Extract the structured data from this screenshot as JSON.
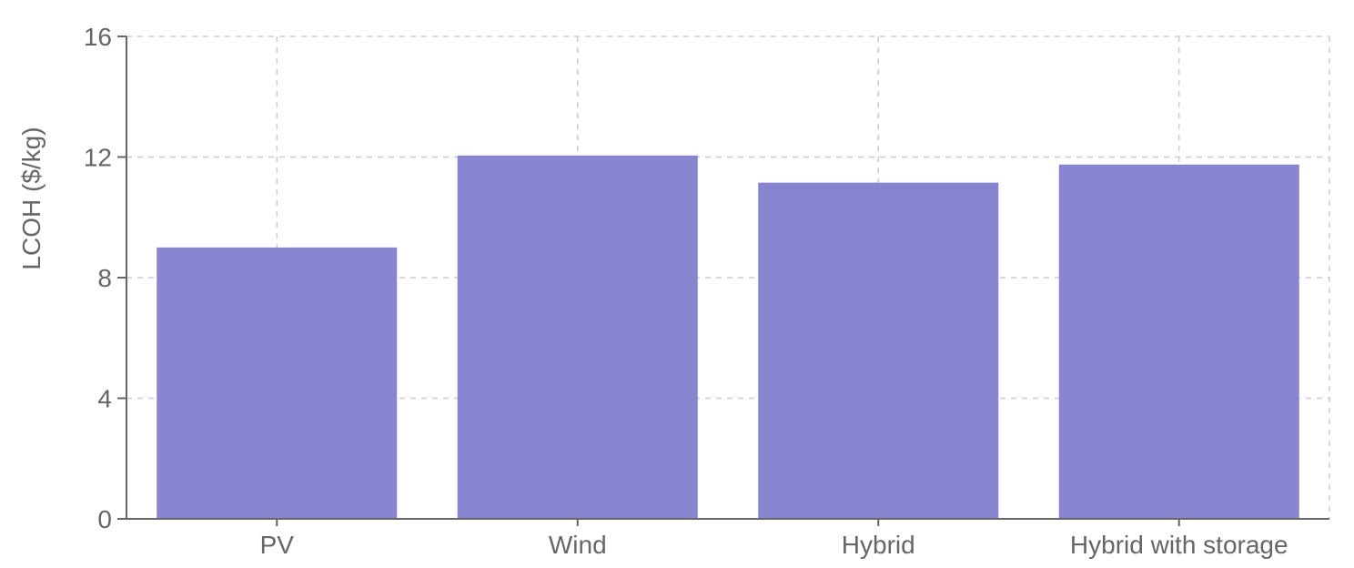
{
  "chart_data": {
    "type": "bar",
    "categories": [
      "PV",
      "Wind",
      "Hybrid",
      "Hybrid with storage"
    ],
    "values": [
      9.0,
      12.05,
      11.15,
      11.75
    ],
    "title": "",
    "xlabel": "",
    "ylabel": "LCOH ($/kg)",
    "ylim": [
      0,
      16
    ],
    "yticks": [
      0,
      4,
      8,
      12,
      16
    ],
    "grid": true,
    "colors": {
      "bar": "#8884d0",
      "grid": "#cccccc",
      "axis": "#666666",
      "text": "#666666"
    }
  }
}
